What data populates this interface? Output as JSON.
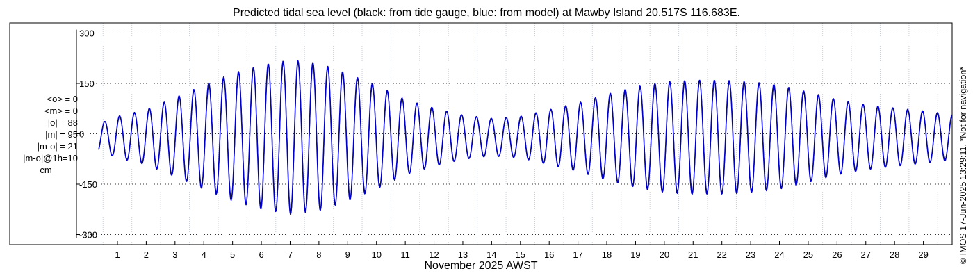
{
  "chart_data": {
    "type": "line",
    "title": "Predicted tidal sea level (black: from tide gauge, blue: from model) at Mawby Island 20.517S 116.683E.",
    "xlabel": "November 2025 AWST",
    "ylabel": "",
    "ylim": [
      -330,
      330
    ],
    "yticks": [
      300,
      150,
      0,
      -150,
      -300
    ],
    "ytick_labels": [
      "300",
      "150",
      "0",
      "-150",
      "-300"
    ],
    "xlim": [
      0.3,
      30.0
    ],
    "xticks": [
      1,
      2,
      3,
      4,
      5,
      6,
      7,
      8,
      9,
      10,
      11,
      12,
      13,
      14,
      15,
      16,
      17,
      18,
      19,
      20,
      21,
      22,
      23,
      24,
      25,
      26,
      27,
      28,
      29
    ],
    "xtick_labels": [
      "1",
      "2",
      "3",
      "4",
      "5",
      "6",
      "7",
      "8",
      "9",
      "10",
      "11",
      "12",
      "13",
      "14",
      "15",
      "16",
      "17",
      "18",
      "19",
      "20",
      "21",
      "22",
      "23",
      "24",
      "25",
      "26",
      "27",
      "28",
      "29"
    ],
    "grid": true,
    "series": [
      {
        "color": "#000000",
        "amplitude_envelope": {
          "day": [
            0.5,
            1,
            2,
            3,
            4,
            5,
            6,
            7,
            8,
            9,
            10,
            11,
            12,
            13,
            14,
            15,
            16,
            17,
            18,
            19,
            20,
            21,
            22,
            23,
            24,
            25,
            26,
            27,
            28,
            29,
            30
          ],
          "amplitude_cm": [
            45,
            60,
            80,
            115,
            150,
            185,
            210,
            225,
            215,
            185,
            150,
            110,
            85,
            65,
            55,
            60,
            80,
            100,
            125,
            145,
            160,
            165,
            165,
            160,
            150,
            130,
            110,
            95,
            85,
            75,
            65
          ]
        },
        "mean_offset_cm": -10,
        "period_hours": 12.4
      },
      {
        "color": "#0000cc",
        "amplitude_envelope": {
          "day": [
            0.5,
            1,
            2,
            3,
            4,
            5,
            6,
            7,
            8,
            9,
            10,
            11,
            12,
            13,
            14,
            15,
            16,
            17,
            18,
            19,
            20,
            21,
            22,
            23,
            24,
            25,
            26,
            27,
            28,
            29,
            30
          ],
          "amplitude_cm": [
            45,
            62,
            82,
            118,
            155,
            190,
            215,
            230,
            220,
            190,
            155,
            112,
            87,
            66,
            56,
            62,
            82,
            102,
            128,
            150,
            165,
            170,
            170,
            165,
            155,
            135,
            112,
            97,
            87,
            78,
            68
          ]
        },
        "mean_offset_cm": -10,
        "period_hours": 12.4
      }
    ],
    "stats_lines": [
      "<o> = 0",
      "<m> = 0",
      "|o| = 88",
      "|m| = 95",
      "|m-o| = 21",
      "|m-o|@1h=10"
    ],
    "stats_unit": "cm",
    "copyright": "© IMOS 17-Jun-2025 13:29:11. *Not for navigation*"
  }
}
